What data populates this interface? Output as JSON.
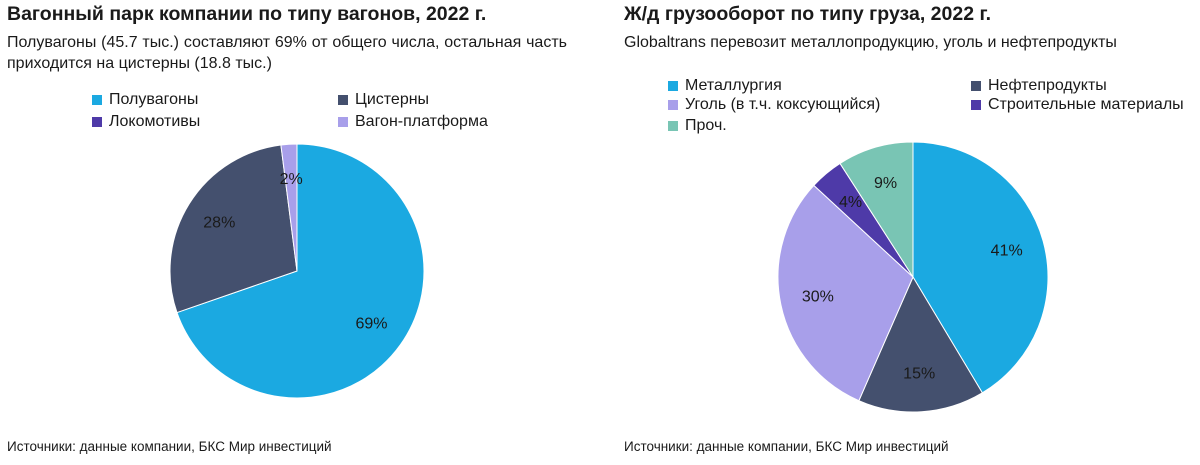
{
  "charts": [
    {
      "title": "Вагонный парк компании по типу вагонов, 2022 г.",
      "subtitle": "Полувагоны (45.7 тыс.) составляют 69% от общего числа, остальная часть приходится на цистерны (18.8 тыс.)",
      "source": "Источники: данные компании, БКС Мир инвестиций"
    },
    {
      "title": "Ж/д грузооборот по типу груза, 2022 г.",
      "subtitle": "Globaltrans перевозит металлопродукцию, уголь и нефтепродукты",
      "source": "Источники: данные компании, БКС Мир инвестиций"
    }
  ],
  "chart_data": [
    {
      "type": "pie",
      "legend_placement": "top",
      "slices": [
        {
          "label": "Полувагоны",
          "value": 69,
          "display": "69%",
          "color": "#1BA9E1"
        },
        {
          "label": "Цистерны",
          "value": 28,
          "display": "28%",
          "color": "#44506E"
        },
        {
          "label": "Локомотивы",
          "value": 0,
          "display": "",
          "color": "#4E3AA8"
        },
        {
          "label": "Вагон-платформа",
          "value": 2,
          "display": "2%",
          "color": "#A89FEA"
        }
      ]
    },
    {
      "type": "pie",
      "legend_placement": "top",
      "slices": [
        {
          "label": "Металлургия",
          "value": 41,
          "display": "41%",
          "color": "#1BA9E1"
        },
        {
          "label": "Нефтепродукты",
          "value": 15,
          "display": "15%",
          "color": "#44506E"
        },
        {
          "label": "Уголь (в т.ч. коксующийся)",
          "value": 30,
          "display": "30%",
          "color": "#A89FEA"
        },
        {
          "label": "Строительные материалы",
          "value": 4,
          "display": "4%",
          "color": "#4E3AA8"
        },
        {
          "label": "Проч.",
          "value": 9,
          "display": "9%",
          "color": "#79C5B4"
        }
      ]
    }
  ]
}
